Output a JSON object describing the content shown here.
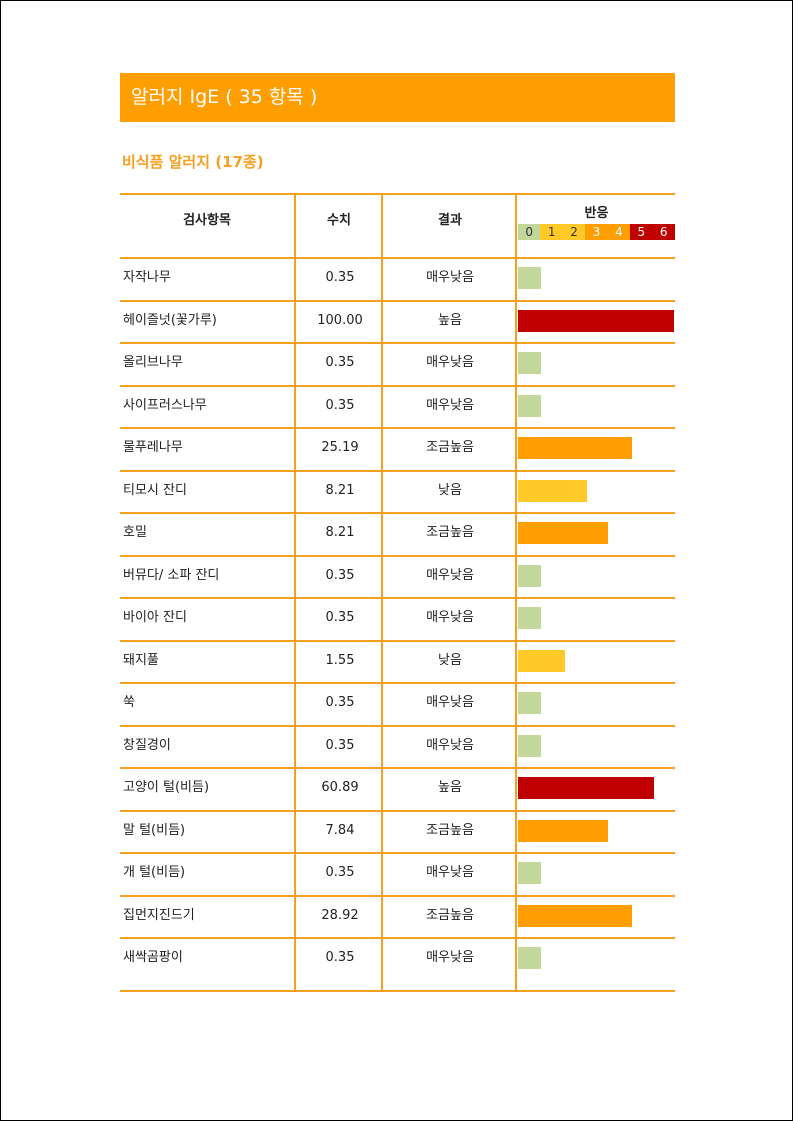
{
  "title": "알러지 IgE ( 35 항목 )",
  "section": "비식품 알러지 (17종)",
  "headers": {
    "item": "검사항목",
    "value": "수치",
    "result": "결과",
    "reaction": "반응"
  },
  "scale": [
    {
      "label": "0",
      "color": "#C4D79B"
    },
    {
      "label": "1",
      "color": "#FFCA28"
    },
    {
      "label": "2",
      "color": "#FFCA28"
    },
    {
      "label": "3",
      "color": "#FF9E00"
    },
    {
      "label": "4",
      "color": "#FF9E00"
    },
    {
      "label": "5",
      "color": "#C00000"
    },
    {
      "label": "6",
      "color": "#C00000"
    }
  ],
  "colors": {
    "accent": "#FF9E00",
    "line": "#F5A01E",
    "very_low": "#C4D79B",
    "low": "#FFCA28",
    "slightly_high": "#FF9E00",
    "high": "#C00000"
  },
  "rows": [
    {
      "name": "자작나무",
      "value": "0.35",
      "result": "매우낮음",
      "level": 0.15,
      "color": "#C4D79B"
    },
    {
      "name": "헤이즐넛(꽃가루)",
      "value": "100.00",
      "result": "높음",
      "level": 1.0,
      "color": "#C00000"
    },
    {
      "name": "올리브나무",
      "value": "0.35",
      "result": "매우낮음",
      "level": 0.15,
      "color": "#C4D79B"
    },
    {
      "name": "사이프러스나무",
      "value": "0.35",
      "result": "매우낮음",
      "level": 0.15,
      "color": "#C4D79B"
    },
    {
      "name": "물푸레나무",
      "value": "25.19",
      "result": "조금높음",
      "level": 0.73,
      "color": "#FF9E00"
    },
    {
      "name": "티모시 잔디",
      "value": "8.21",
      "result": "낮음",
      "level": 0.44,
      "color": "#FFCA28"
    },
    {
      "name": "호밀",
      "value": "8.21",
      "result": "조금높음",
      "level": 0.58,
      "color": "#FF9E00"
    },
    {
      "name": "버뮤다/ 소파 잔디",
      "value": "0.35",
      "result": "매우낮음",
      "level": 0.15,
      "color": "#C4D79B"
    },
    {
      "name": "바이아 잔디",
      "value": "0.35",
      "result": "매우낮음",
      "level": 0.15,
      "color": "#C4D79B"
    },
    {
      "name": "돼지풀",
      "value": "1.55",
      "result": "낮음",
      "level": 0.3,
      "color": "#FFCA28"
    },
    {
      "name": "쑥",
      "value": "0.35",
      "result": "매우낮음",
      "level": 0.15,
      "color": "#C4D79B"
    },
    {
      "name": "창질경이",
      "value": "0.35",
      "result": "매우낮음",
      "level": 0.15,
      "color": "#C4D79B"
    },
    {
      "name": "고양이 털(비듬)",
      "value": "60.89",
      "result": "높음",
      "level": 0.87,
      "color": "#C00000"
    },
    {
      "name": "말 털(비듬)",
      "value": "7.84",
      "result": "조금높음",
      "level": 0.58,
      "color": "#FF9E00"
    },
    {
      "name": "개 털(비듬)",
      "value": "0.35",
      "result": "매우낮음",
      "level": 0.15,
      "color": "#C4D79B"
    },
    {
      "name": "집먼지진드기",
      "value": "28.92",
      "result": "조금높음",
      "level": 0.73,
      "color": "#FF9E00"
    },
    {
      "name": "새싹곰팡이",
      "value": "0.35",
      "result": "매우낮음",
      "level": 0.15,
      "color": "#C4D79B"
    }
  ]
}
